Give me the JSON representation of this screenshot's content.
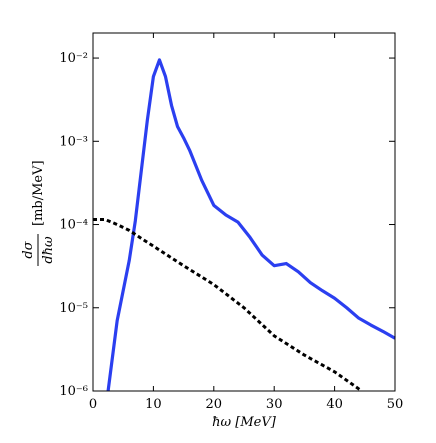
{
  "chart_data": {
    "type": "line",
    "xlabel": "ħω [MeV]",
    "ylabel": {
      "numerator": "dσ",
      "denominator": "dħω",
      "unit": "[mb/MeV]"
    },
    "log_y": true,
    "xlim": [
      0,
      50
    ],
    "xticks": [
      0,
      10,
      20,
      30,
      40,
      50
    ],
    "ylim": [
      1e-06,
      0.02
    ],
    "yticks": [
      {
        "value": 1e-06,
        "label": "10⁻⁶"
      },
      {
        "value": 1e-05,
        "label": "10⁻⁵"
      },
      {
        "value": 0.0001,
        "label": "10⁻⁴"
      },
      {
        "value": 0.001,
        "label": "10⁻³"
      },
      {
        "value": 0.01,
        "label": "10⁻²"
      }
    ],
    "series": [
      {
        "color": "#2b3ff0",
        "style": "solid",
        "x": [
          2.5,
          4,
          6,
          7,
          9,
          10,
          11,
          12,
          13,
          14,
          15,
          16,
          18,
          20,
          22,
          24,
          26,
          28,
          30,
          32,
          34,
          36,
          38,
          40,
          42,
          44,
          46,
          48,
          50
        ],
        "values": [
          1e-06,
          7e-06,
          3.7e-05,
          0.00011,
          0.0018,
          0.006,
          0.0095,
          0.006,
          0.0027,
          0.0015,
          0.0011,
          0.00078,
          0.00034,
          0.00017,
          0.00013,
          0.000107,
          7e-05,
          4.3e-05,
          3.2e-05,
          3.4e-05,
          2.7e-05,
          2e-05,
          1.6e-05,
          1.3e-05,
          1e-05,
          7.5e-06,
          6.2e-06,
          5.2e-06,
          4.3e-06
        ]
      },
      {
        "color": "#000000",
        "style": "dotted",
        "x": [
          0,
          2,
          4,
          6,
          8,
          10,
          15,
          20,
          25,
          30,
          35,
          40,
          44.5
        ],
        "values": [
          0.000115,
          0.000115,
          0.0001,
          8.5e-05,
          6.8e-05,
          5.5e-05,
          3.2e-05,
          1.9e-05,
          1e-05,
          4.6e-06,
          2.7e-06,
          1.7e-06,
          1e-06
        ]
      }
    ]
  }
}
